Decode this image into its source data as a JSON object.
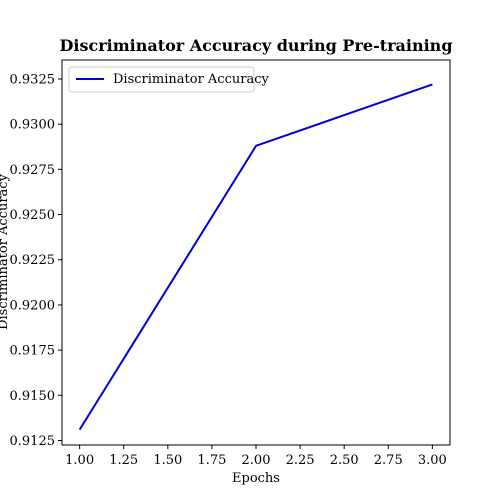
{
  "chart_data": {
    "type": "line",
    "title": "Discriminator Accuracy during Pre-training",
    "xlabel": "Epochs",
    "ylabel": "Discriminator Accuracy",
    "xlim": [
      0.9,
      3.1
    ],
    "ylim": [
      0.91225,
      0.93355
    ],
    "x_ticks": [
      "1.00",
      "1.25",
      "1.50",
      "1.75",
      "2.00",
      "2.25",
      "2.50",
      "2.75",
      "3.00"
    ],
    "y_ticks": [
      "0.9125",
      "0.9150",
      "0.9175",
      "0.9200",
      "0.9225",
      "0.9250",
      "0.9275",
      "0.9300",
      "0.9325"
    ],
    "grid": false,
    "legend_position": "upper-left",
    "series": [
      {
        "name": "Discriminator Accuracy",
        "color": "#0000dd",
        "x": [
          1,
          2,
          3
        ],
        "y": [
          0.9131,
          0.9288,
          0.9322
        ]
      }
    ]
  }
}
